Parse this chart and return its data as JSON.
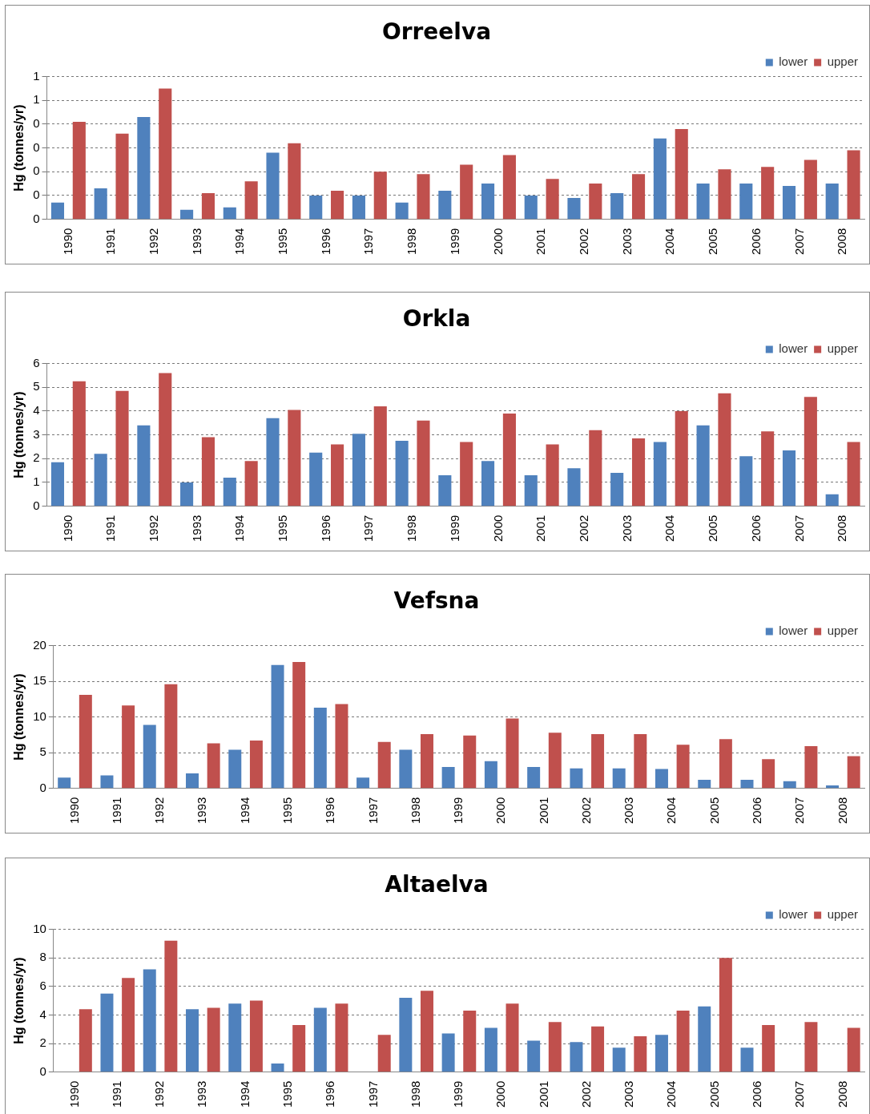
{
  "chart_data": [
    {
      "type": "bar",
      "title": "Orreelva",
      "ylabel": "Hg (tonnes/yr)",
      "categories": [
        "1990",
        "1991",
        "1992",
        "1993",
        "1994",
        "1995",
        "1996",
        "1997",
        "1998",
        "1999",
        "2000",
        "2001",
        "2002",
        "2003",
        "2004",
        "2005",
        "2006",
        "2007",
        "2008"
      ],
      "series": [
        {
          "name": "lower",
          "color": "#4f81bd",
          "values": [
            0.07,
            0.13,
            0.43,
            0.04,
            0.05,
            0.28,
            0.1,
            0.1,
            0.07,
            0.12,
            0.15,
            0.1,
            0.09,
            0.11,
            0.34,
            0.15,
            0.15,
            0.14,
            0.15
          ]
        },
        {
          "name": "upper",
          "color": "#c0504d",
          "values": [
            0.41,
            0.36,
            0.55,
            0.11,
            0.16,
            0.32,
            0.12,
            0.2,
            0.19,
            0.23,
            0.27,
            0.17,
            0.15,
            0.19,
            0.38,
            0.21,
            0.22,
            0.25,
            0.29
          ]
        }
      ],
      "ylim": [
        0,
        0.6
      ],
      "yticks": [
        {
          "value": 0,
          "label": "0"
        },
        {
          "value": 0.1,
          "label": "0"
        },
        {
          "value": 0.2,
          "label": "0"
        },
        {
          "value": 0.3,
          "label": "0"
        },
        {
          "value": 0.4,
          "label": "0"
        },
        {
          "value": 0.5,
          "label": "1"
        },
        {
          "value": 0.6,
          "label": "1"
        }
      ],
      "grid": "y",
      "legend": "top right"
    },
    {
      "type": "bar",
      "title": "Orkla",
      "ylabel": "Hg (tonnes/yr)",
      "categories": [
        "1990",
        "1991",
        "1992",
        "1993",
        "1994",
        "1995",
        "1996",
        "1997",
        "1998",
        "1999",
        "2000",
        "2001",
        "2002",
        "2003",
        "2004",
        "2005",
        "2006",
        "2007",
        "2008"
      ],
      "series": [
        {
          "name": "lower",
          "color": "#4f81bd",
          "values": [
            1.85,
            2.2,
            3.4,
            1.0,
            1.2,
            3.7,
            2.25,
            3.05,
            2.75,
            1.3,
            1.9,
            1.3,
            1.6,
            1.4,
            2.7,
            3.4,
            2.1,
            2.35,
            0.5
          ]
        },
        {
          "name": "upper",
          "color": "#c0504d",
          "values": [
            5.25,
            4.85,
            5.6,
            2.9,
            1.9,
            4.05,
            2.6,
            4.2,
            3.6,
            2.7,
            3.9,
            2.6,
            3.2,
            2.85,
            4.0,
            4.75,
            3.15,
            4.6,
            2.7
          ]
        }
      ],
      "ylim": [
        0,
        6
      ],
      "yticks": [
        0,
        1,
        2,
        3,
        4,
        5,
        6
      ],
      "grid": "y",
      "legend": "top right"
    },
    {
      "type": "bar",
      "title": "Vefsna",
      "ylabel": "Hg (tonnes/yr)",
      "categories": [
        "1990",
        "1991",
        "1992",
        "1993",
        "1994",
        "1995",
        "1996",
        "1997",
        "1998",
        "1999",
        "2000",
        "2001",
        "2002",
        "2003",
        "2004",
        "2005",
        "2006",
        "2007",
        "2008"
      ],
      "series": [
        {
          "name": "lower",
          "color": "#4f81bd",
          "values": [
            1.5,
            1.8,
            8.9,
            2.1,
            5.4,
            17.3,
            11.3,
            1.5,
            5.4,
            3.0,
            3.8,
            3.0,
            2.8,
            2.8,
            2.7,
            1.2,
            1.2,
            1.0,
            0.4
          ]
        },
        {
          "name": "upper",
          "color": "#c0504d",
          "values": [
            13.1,
            11.6,
            14.6,
            6.3,
            6.7,
            17.7,
            11.8,
            6.5,
            7.6,
            7.4,
            9.8,
            7.8,
            7.6,
            7.6,
            6.1,
            6.9,
            4.1,
            5.9,
            4.5
          ]
        }
      ],
      "ylim": [
        0,
        20
      ],
      "yticks": [
        0,
        5,
        10,
        15,
        20
      ],
      "grid": "y",
      "legend": "top right"
    },
    {
      "type": "bar",
      "title": "Altaelva",
      "ylabel": "Hg (tonnes/yr)",
      "categories": [
        "1990",
        "1991",
        "1992",
        "1993",
        "1994",
        "1995",
        "1996",
        "1997",
        "1998",
        "1999",
        "2000",
        "2001",
        "2002",
        "2003",
        "2004",
        "2005",
        "2006",
        "2007",
        "2008"
      ],
      "series": [
        {
          "name": "lower",
          "color": "#4f81bd",
          "values": [
            null,
            5.5,
            7.2,
            4.4,
            4.8,
            0.6,
            4.5,
            null,
            5.2,
            2.7,
            3.1,
            2.2,
            2.1,
            1.7,
            2.6,
            4.6,
            1.7,
            null,
            null
          ]
        },
        {
          "name": "upper",
          "color": "#c0504d",
          "values": [
            4.4,
            6.6,
            9.2,
            4.5,
            5.0,
            3.3,
            4.8,
            2.6,
            5.7,
            4.3,
            4.8,
            3.5,
            3.2,
            2.5,
            4.3,
            8.0,
            3.3,
            3.5,
            3.1
          ]
        }
      ],
      "ylim": [
        0,
        10
      ],
      "yticks": [
        0,
        2,
        4,
        6,
        8,
        10
      ],
      "grid": "y",
      "legend": "top right"
    }
  ]
}
